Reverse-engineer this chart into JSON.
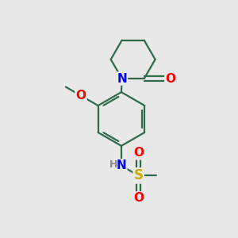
{
  "background_color": "#e8e8e8",
  "bond_color": "#2d6b4a",
  "atom_colors": {
    "N": "#0000ff",
    "O": "#ff0000",
    "S": "#ccaa00",
    "H": "#888888",
    "C": "#2d6b4a"
  },
  "figsize": [
    3.0,
    3.0
  ],
  "dpi": 100,
  "xlim": [
    0,
    10
  ],
  "ylim": [
    0,
    10
  ]
}
